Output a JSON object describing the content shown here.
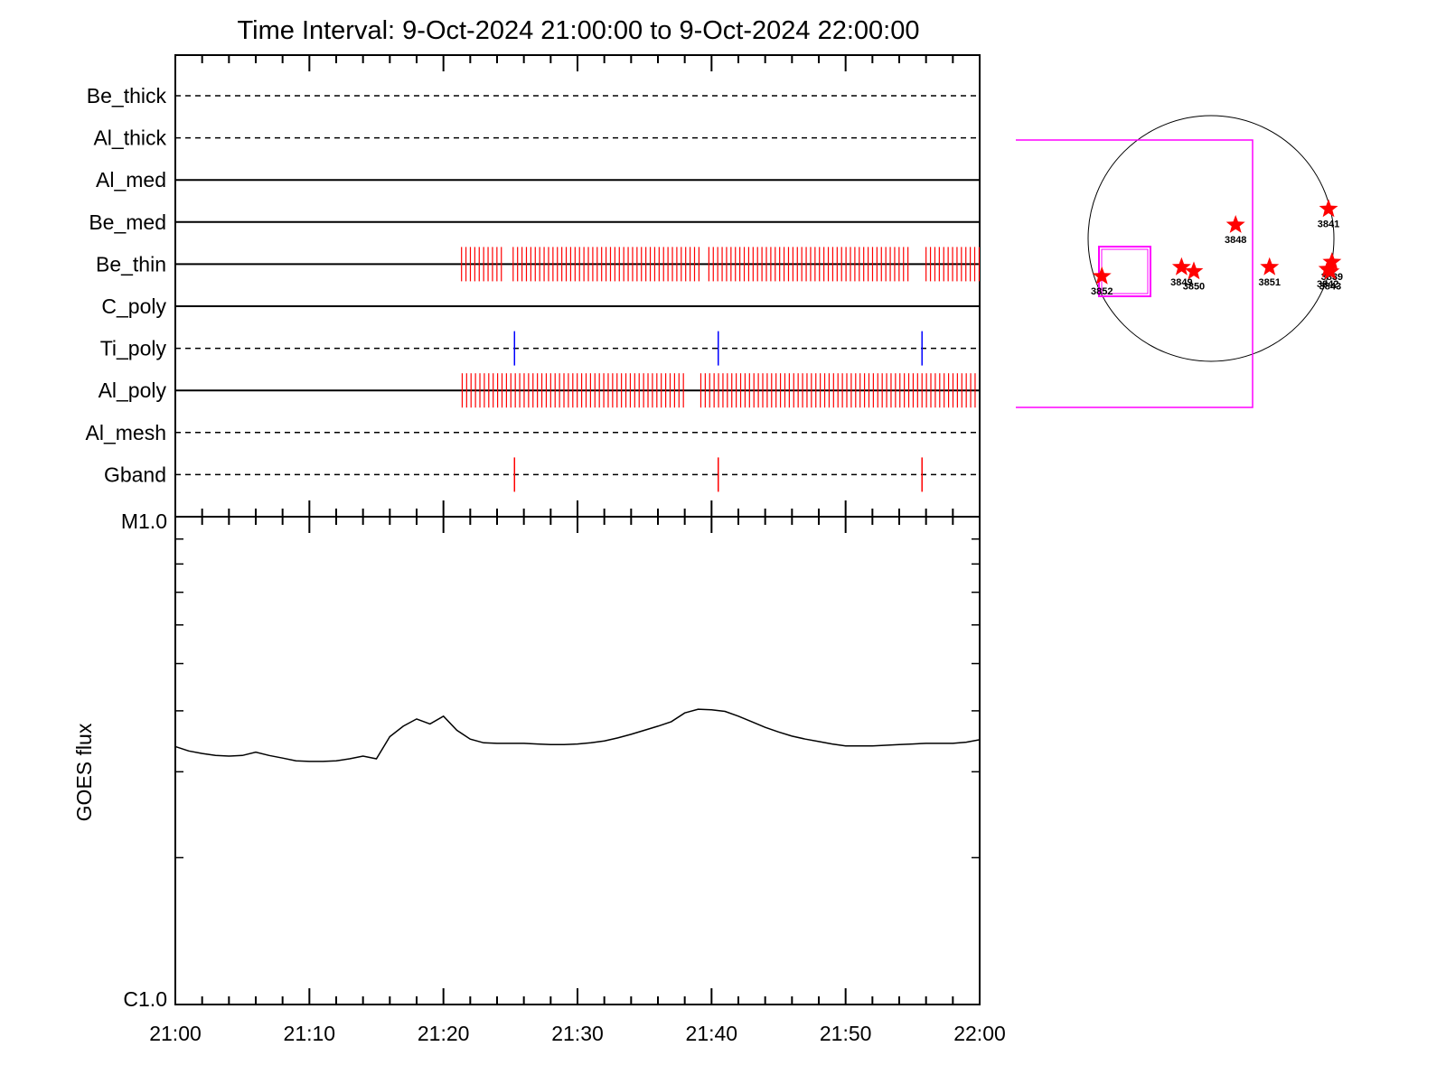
{
  "title": "Time Interval:  9-Oct-2024 21:00:00 to  9-Oct-2024 22:00:00",
  "colors": {
    "axis": "#000000",
    "red_mark": "#ff0000",
    "blue_mark": "#0000ff",
    "fov_box": "#ff00ff",
    "disk": "#000000"
  },
  "chart_data": [
    {
      "type": "timeline",
      "x_range": [
        "21:00",
        "22:00"
      ],
      "rows": [
        {
          "label": "Be_thick",
          "style": "dashed",
          "marks": []
        },
        {
          "label": "Al_thick",
          "style": "dashed",
          "marks": []
        },
        {
          "label": "Al_med",
          "style": "solid",
          "marks": []
        },
        {
          "label": "Be_med",
          "style": "solid",
          "marks": []
        },
        {
          "label": "Be_thin",
          "style": "solid",
          "color": "red",
          "mark_segments": [
            [
              21.35,
              24.5
            ],
            [
              25.2,
              39.1
            ],
            [
              39.8,
              54.8
            ],
            [
              56.0,
              60.0
            ]
          ],
          "mark_interval_min": 0.33
        },
        {
          "label": "C_poly",
          "style": "solid",
          "marks": []
        },
        {
          "label": "Ti_poly",
          "style": "dashed",
          "color": "blue",
          "marks": [
            25.3,
            40.5,
            55.7
          ]
        },
        {
          "label": "Al_poly",
          "style": "solid",
          "color": "red",
          "mark_segments": [
            [
              21.4,
              38.2
            ],
            [
              39.2,
              59.8
            ]
          ],
          "mark_interval_min": 0.33
        },
        {
          "label": "Al_mesh",
          "style": "dashed",
          "marks": []
        },
        {
          "label": "Gband",
          "style": "dashed",
          "color": "red",
          "marks": [
            25.3,
            40.5,
            55.7
          ]
        }
      ]
    },
    {
      "type": "line",
      "ylabel": "GOES flux",
      "y_scale": "log",
      "ylim": [
        1e-06,
        1e-05
      ],
      "ytick_labels": [
        "M1.0",
        "C1.0"
      ],
      "x_tick_labels": [
        "21:00",
        "21:10",
        "21:20",
        "21:30",
        "21:40",
        "21:50",
        "22:00"
      ],
      "x_minutes": [
        0,
        1,
        2,
        3,
        4,
        5,
        6,
        7,
        8,
        9,
        10,
        11,
        12,
        13,
        14,
        15,
        16,
        17,
        18,
        19,
        20,
        21,
        22,
        23,
        24,
        25,
        26,
        27,
        28,
        29,
        30,
        31,
        32,
        33,
        34,
        35,
        36,
        37,
        38,
        39,
        40,
        41,
        42,
        43,
        44,
        45,
        46,
        47,
        48,
        49,
        50,
        51,
        52,
        53,
        54,
        55,
        56,
        57,
        58,
        59,
        60
      ],
      "values": [
        3.38e-06,
        3.31e-06,
        3.27e-06,
        3.24e-06,
        3.23e-06,
        3.24e-06,
        3.29e-06,
        3.24e-06,
        3.2e-06,
        3.16e-06,
        3.15e-06,
        3.15e-06,
        3.16e-06,
        3.19e-06,
        3.23e-06,
        3.19e-06,
        3.54e-06,
        3.72e-06,
        3.85e-06,
        3.76e-06,
        3.9e-06,
        3.65e-06,
        3.5e-06,
        3.44e-06,
        3.43e-06,
        3.43e-06,
        3.43e-06,
        3.42e-06,
        3.41e-06,
        3.41e-06,
        3.42e-06,
        3.44e-06,
        3.47e-06,
        3.52e-06,
        3.58e-06,
        3.65e-06,
        3.72e-06,
        3.8e-06,
        3.96e-06,
        4.03e-06,
        4.02e-06,
        3.99e-06,
        3.9e-06,
        3.8e-06,
        3.7e-06,
        3.62e-06,
        3.55e-06,
        3.5e-06,
        3.46e-06,
        3.42e-06,
        3.39e-06,
        3.39e-06,
        3.39e-06,
        3.4e-06,
        3.41e-06,
        3.42e-06,
        3.43e-06,
        3.43e-06,
        3.43e-06,
        3.45e-06,
        3.49e-06
      ]
    },
    {
      "type": "scatter",
      "description_role": "solar disk active-region locator",
      "points": [
        {
          "label": "3841",
          "x": 0.978,
          "y": 0.38
        },
        {
          "label": "3848",
          "x": 0.6,
          "y": 0.445
        },
        {
          "label": "3849",
          "x": 0.38,
          "y": 0.617
        },
        {
          "label": "3850",
          "x": 0.43,
          "y": 0.634
        },
        {
          "label": "3851",
          "x": 0.738,
          "y": 0.617
        },
        {
          "label": "3852",
          "x": 0.056,
          "y": 0.654
        },
        {
          "label": "3839",
          "x": 0.992,
          "y": 0.596
        },
        {
          "label": "3842",
          "x": 0.975,
          "y": 0.625
        },
        {
          "label": "3843",
          "x": 0.985,
          "y": 0.635
        }
      ]
    }
  ]
}
